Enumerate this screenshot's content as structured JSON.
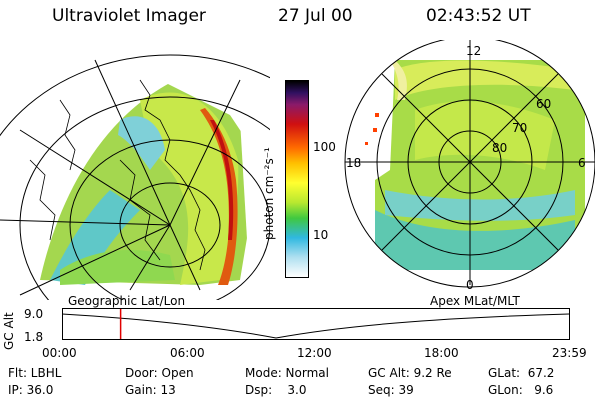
{
  "header": {
    "title": "Ultraviolet Imager",
    "date": "27 Jul 00",
    "time": "02:43:52 UT"
  },
  "colorbar": {
    "unit_label": "photon cm⁻²s⁻¹",
    "ticks": [
      "100",
      "10"
    ]
  },
  "polar_plot": {
    "mlt_labels": {
      "top": "12",
      "right": "6",
      "bottom": "0",
      "left": "18"
    },
    "lat_labels": [
      "60",
      "70",
      "80"
    ]
  },
  "projections": {
    "left_label": "Geographic Lat/Lon",
    "right_label": "Apex MLat/MLT"
  },
  "timeline": {
    "axis_label": "GC Alt",
    "y_ticks": [
      "9.0",
      "1.8"
    ],
    "x_ticks": [
      "00:00",
      "06:00",
      "12:00",
      "18:00",
      "23:59"
    ],
    "marker_time": "02:43:52",
    "marker_color": "#e00000"
  },
  "info": {
    "filter": "Flt: LBHL",
    "ip": "IP: 36.0",
    "door": "Door: Open",
    "gain": "Gain: 13",
    "mode": "Mode: Normal",
    "dsp": "Dsp:    3.0",
    "gc_alt": "GC Alt: 9.2 Re",
    "seq": "Seq: 39",
    "glat": "GLat:  67.2",
    "glon": "GLon:   9.6"
  }
}
